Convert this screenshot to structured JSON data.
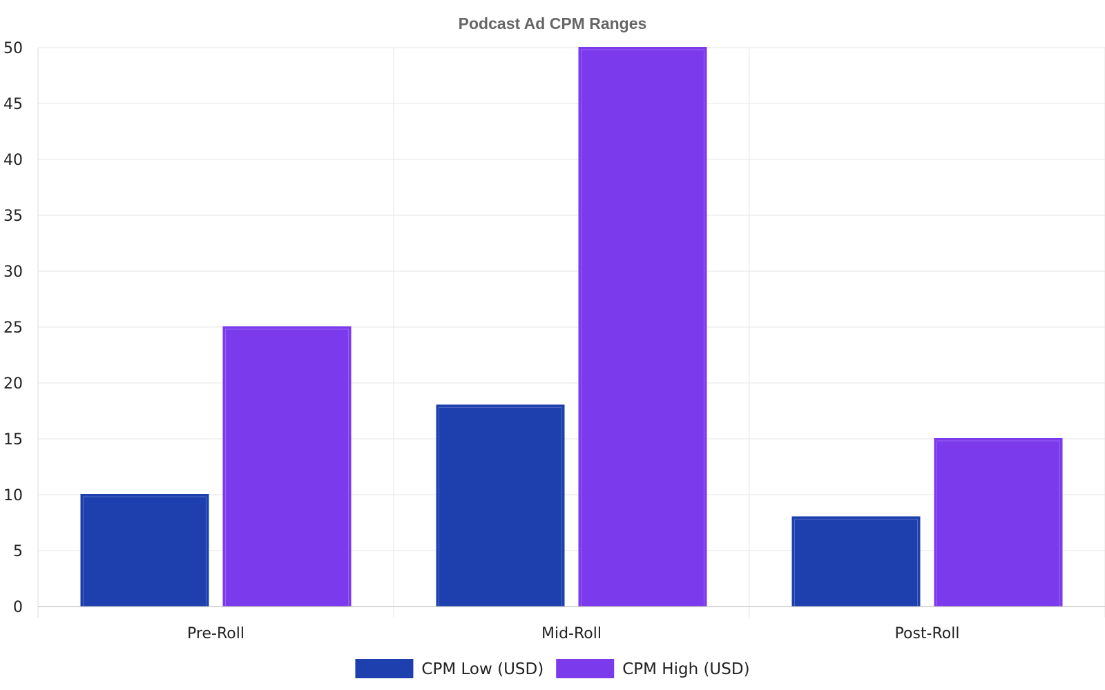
{
  "chart_data": {
    "type": "bar",
    "title": "Podcast Ad CPM Ranges",
    "xlabel": "",
    "ylabel": "",
    "categories": [
      "Pre-Roll",
      "Mid-Roll",
      "Post-Roll"
    ],
    "series": [
      {
        "name": "CPM Low (USD)",
        "values": [
          10,
          18,
          8
        ],
        "color": "#1e40af"
      },
      {
        "name": "CPM High (USD)",
        "values": [
          25,
          50,
          15
        ],
        "color": "#7c3aed"
      }
    ],
    "ylim": [
      0,
      50
    ],
    "yticks": [
      0,
      5,
      10,
      15,
      20,
      25,
      30,
      35,
      40,
      45,
      50
    ],
    "grid": true,
    "legend_position": "bottom-center"
  }
}
